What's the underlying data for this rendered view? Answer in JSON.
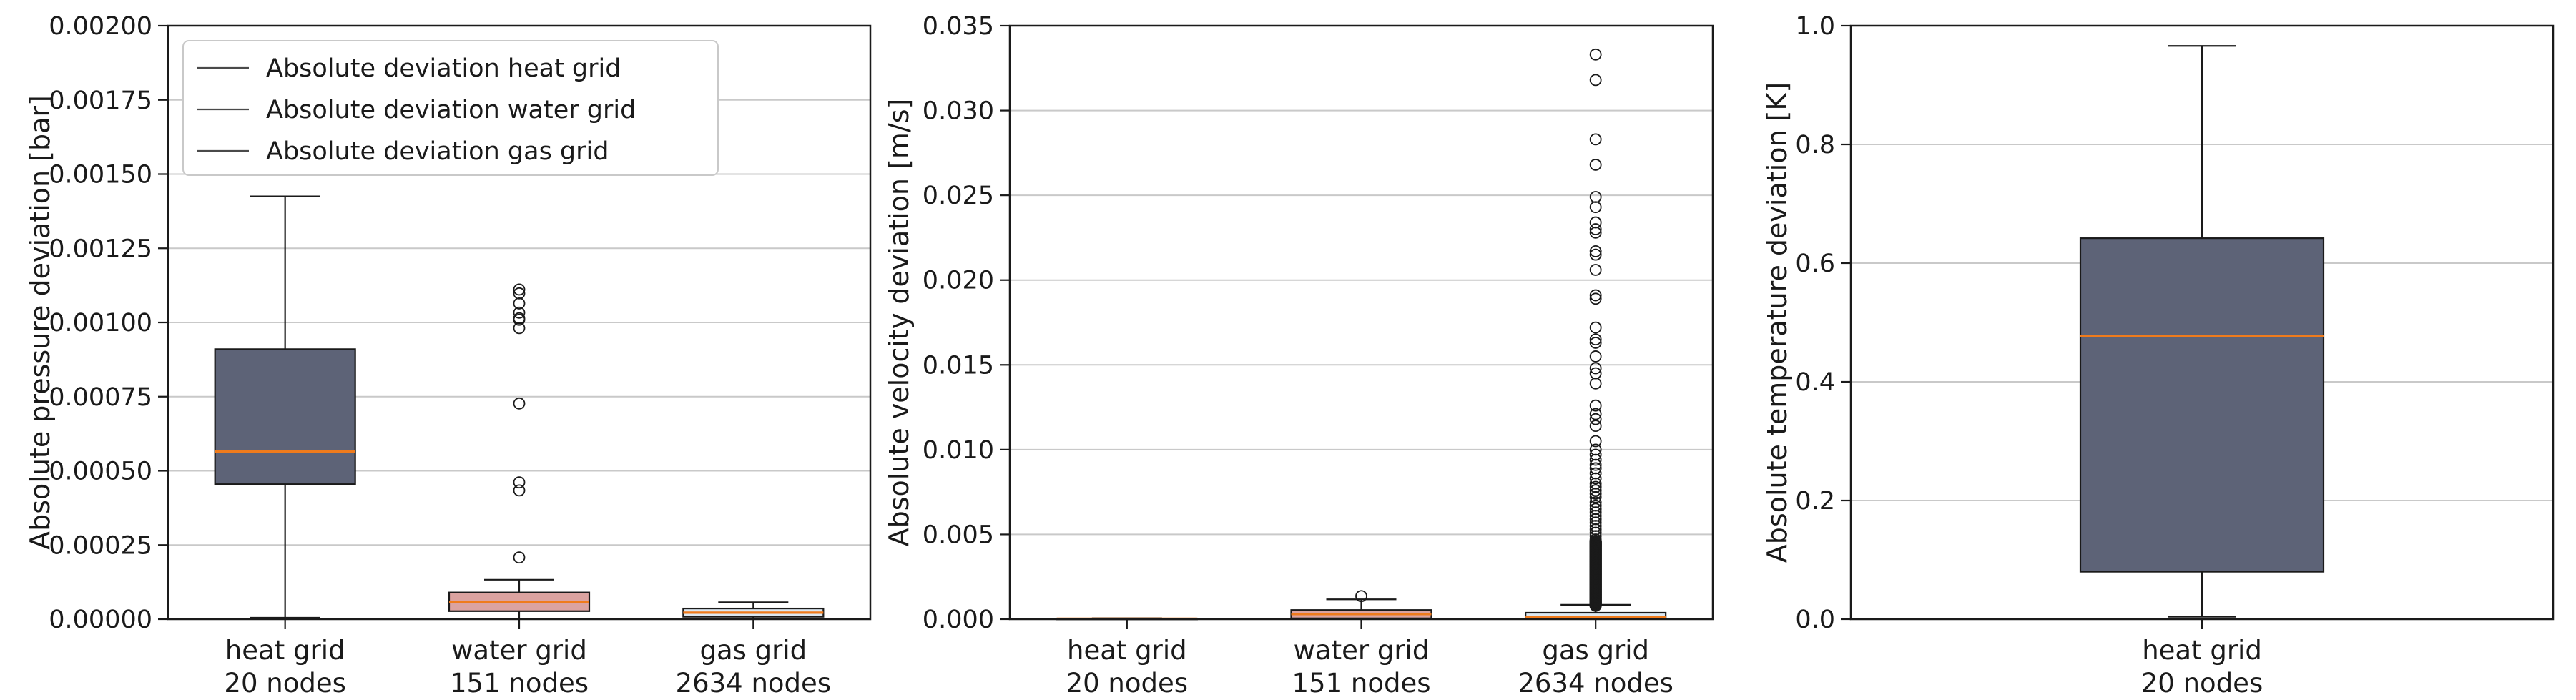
{
  "figure": {
    "background": "#ffffff",
    "colors": {
      "median": "#ef7b1c",
      "box_edge": "#1a1a1a",
      "grid": "#c9c9c9",
      "frame": "#1a1a1a",
      "text": "#1a1a1a",
      "legend_border": "#c9c9c9",
      "legend_line": "#4a4a4a",
      "outlier_edge": "#1a1a1a"
    }
  },
  "chart_data": [
    {
      "type": "boxplot",
      "key": "pressure",
      "ylabel": "Absolute pressure deviation [bar]",
      "ylim": [
        0.0,
        0.002
      ],
      "grid": true,
      "yticks": [
        0.0,
        0.00025,
        0.0005,
        0.00075,
        0.001,
        0.00125,
        0.0015,
        0.00175,
        0.002
      ],
      "ytick_labels": [
        "0.00000",
        "0.00025",
        "0.00050",
        "0.00075",
        "0.00100",
        "0.00125",
        "0.00150",
        "0.00175",
        "0.00200"
      ],
      "categories": [
        {
          "line1": "heat grid",
          "line2": "20 nodes"
        },
        {
          "line1": "water grid",
          "line2": "151 nodes"
        },
        {
          "line1": "gas grid",
          "line2": "2634 nodes"
        }
      ],
      "legend": {
        "position": "upper-left",
        "entries": [
          {
            "label": "Absolute deviation heat grid"
          },
          {
            "label": "Absolute deviation water grid"
          },
          {
            "label": "Absolute deviation gas grid"
          }
        ]
      },
      "boxes": [
        {
          "name": "heat grid",
          "fill": "#5d6377",
          "q1": 0.000455,
          "median": 0.000565,
          "q3": 0.00091,
          "whisker_low": 5e-06,
          "whisker_high": 0.001425,
          "outliers": []
        },
        {
          "name": "water grid",
          "fill": "#dba3a0",
          "q1": 2.7e-05,
          "median": 5.8e-05,
          "q3": 9e-05,
          "whisker_low": 2e-06,
          "whisker_high": 0.000133,
          "outliers": [
            0.000208,
            0.000434,
            0.000461,
            0.000727,
            0.000981,
            0.001009,
            0.001014,
            0.001033,
            0.001064,
            0.001098,
            0.001111
          ]
        },
        {
          "name": "gas grid",
          "fill": "#dce8f2",
          "q1": 8e-06,
          "median": 2.2e-05,
          "q3": 3.6e-05,
          "whisker_low": 1e-06,
          "whisker_high": 5.7e-05,
          "outliers": []
        }
      ]
    },
    {
      "type": "boxplot",
      "key": "velocity",
      "ylabel": "Absolute velocity deviation [m/s]",
      "ylim": [
        0.0,
        0.035
      ],
      "grid": true,
      "yticks": [
        0.0,
        0.005,
        0.01,
        0.015,
        0.02,
        0.025,
        0.03,
        0.035
      ],
      "ytick_labels": [
        "0.000",
        "0.005",
        "0.010",
        "0.015",
        "0.020",
        "0.025",
        "0.030",
        "0.035"
      ],
      "categories": [
        {
          "line1": "heat grid",
          "line2": "20 nodes"
        },
        {
          "line1": "water grid",
          "line2": "151 nodes"
        },
        {
          "line1": "gas grid",
          "line2": "2634 nodes"
        }
      ],
      "boxes": [
        {
          "name": "heat grid",
          "fill": "#5d6377",
          "q1": 1e-05,
          "median": 2.5e-05,
          "q3": 4e-05,
          "whisker_low": 2e-06,
          "whisker_high": 6e-05,
          "outliers": []
        },
        {
          "name": "water grid",
          "fill": "#dba3a0",
          "q1": 5e-05,
          "median": 0.0003,
          "q3": 0.00054,
          "whisker_low": 5e-06,
          "whisker_high": 0.00117,
          "outliers": [
            0.00136
          ]
        },
        {
          "name": "gas grid",
          "fill": "#dce8f2",
          "q1": 7e-05,
          "median": 0.00014,
          "q3": 0.00038,
          "whisker_low": 5e-06,
          "whisker_high": 0.00085,
          "outliers": [
            0.0333,
            0.0318,
            0.0283,
            0.0268,
            0.0249,
            0.0243,
            0.0234,
            0.023,
            0.0228,
            0.0217,
            0.0215,
            0.0206,
            0.0191,
            0.0189,
            0.0172,
            0.0165,
            0.0163,
            0.0155,
            0.0148,
            0.0145,
            0.0139,
            0.0126,
            0.0121,
            0.0118,
            0.0114,
            0.0105,
            0.01,
            0.0097,
            0.0094,
            0.0091,
            0.0089,
            0.0086,
            0.0083,
            0.008,
            0.0078,
            0.0076,
            0.0074,
            0.0072,
            0.0069,
            0.0067,
            0.0065,
            0.0063,
            0.0061,
            0.0059,
            0.0057,
            0.0055,
            0.0053,
            0.0051,
            0.0049,
            0.0047
          ],
          "outlier_dense": {
            "min": 0.0008,
            "max": 0.0046,
            "count": 130
          }
        }
      ]
    },
    {
      "type": "boxplot",
      "key": "temperature",
      "ylabel": "Absolute temperature deviation [K]",
      "ylim": [
        0.0,
        1.0
      ],
      "grid": true,
      "yticks": [
        0.0,
        0.2,
        0.4,
        0.6,
        0.8,
        1.0
      ],
      "ytick_labels": [
        "0.0",
        "0.2",
        "0.4",
        "0.6",
        "0.8",
        "1.0"
      ],
      "categories": [
        {
          "line1": "heat grid",
          "line2": "20 nodes"
        }
      ],
      "boxes": [
        {
          "name": "heat grid",
          "fill": "#5d6377",
          "q1": 0.08,
          "median": 0.477,
          "q3": 0.642,
          "whisker_low": 0.004,
          "whisker_high": 0.966,
          "outliers": []
        }
      ]
    }
  ]
}
